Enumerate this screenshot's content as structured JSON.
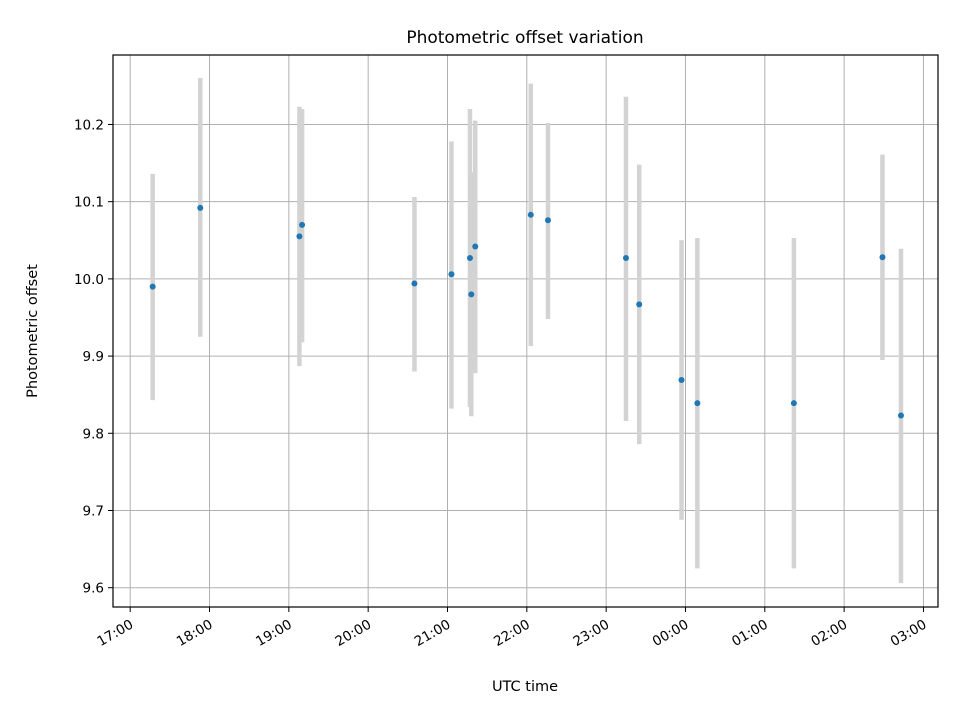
{
  "chart_data": {
    "type": "scatter",
    "title": "Photometric offset variation",
    "xlabel": "UTC time",
    "ylabel": "Photometric offset",
    "x_tick_labels": [
      "17:00",
      "18:00",
      "19:00",
      "20:00",
      "21:00",
      "22:00",
      "23:00",
      "00:00",
      "01:00",
      "02:00",
      "03:00"
    ],
    "y_ticks": [
      "9.6",
      "9.7",
      "9.8",
      "9.9",
      "10.0",
      "10.1",
      "10.2"
    ],
    "xlim": [
      "16:47",
      "03:11"
    ],
    "ylim": [
      9.575,
      10.29
    ],
    "grid": true,
    "marker_color": "#1f77b4",
    "errorbar_color": "#d3d3d3",
    "points": [
      {
        "time": "17:17",
        "y": 9.99,
        "ylo": 9.843,
        "yhi": 10.136
      },
      {
        "time": "17:53",
        "y": 10.092,
        "ylo": 9.925,
        "yhi": 10.26
      },
      {
        "time": "19:08",
        "y": 10.055,
        "ylo": 9.887,
        "yhi": 10.223
      },
      {
        "time": "19:10",
        "y": 10.07,
        "ylo": 9.918,
        "yhi": 10.22
      },
      {
        "time": "20:35",
        "y": 9.994,
        "ylo": 9.88,
        "yhi": 10.106
      },
      {
        "time": "21:03",
        "y": 10.006,
        "ylo": 9.832,
        "yhi": 10.178
      },
      {
        "time": "21:17",
        "y": 10.027,
        "ylo": 9.834,
        "yhi": 10.22
      },
      {
        "time": "21:18",
        "y": 9.98,
        "ylo": 9.822,
        "yhi": 10.138
      },
      {
        "time": "21:21",
        "y": 10.042,
        "ylo": 9.878,
        "yhi": 10.205
      },
      {
        "time": "22:03",
        "y": 10.083,
        "ylo": 9.913,
        "yhi": 10.253
      },
      {
        "time": "22:16",
        "y": 10.076,
        "ylo": 9.948,
        "yhi": 10.202
      },
      {
        "time": "23:15",
        "y": 10.027,
        "ylo": 9.816,
        "yhi": 10.236
      },
      {
        "time": "23:25",
        "y": 9.967,
        "ylo": 9.786,
        "yhi": 10.148
      },
      {
        "time": "23:57",
        "y": 9.869,
        "ylo": 9.688,
        "yhi": 10.05
      },
      {
        "time": "00:09",
        "y": 9.839,
        "ylo": 9.625,
        "yhi": 10.053
      },
      {
        "time": "01:22",
        "y": 9.839,
        "ylo": 9.625,
        "yhi": 10.053
      },
      {
        "time": "02:29",
        "y": 10.028,
        "ylo": 9.895,
        "yhi": 10.161
      },
      {
        "time": "02:43",
        "y": 9.823,
        "ylo": 9.606,
        "yhi": 10.039
      }
    ]
  }
}
